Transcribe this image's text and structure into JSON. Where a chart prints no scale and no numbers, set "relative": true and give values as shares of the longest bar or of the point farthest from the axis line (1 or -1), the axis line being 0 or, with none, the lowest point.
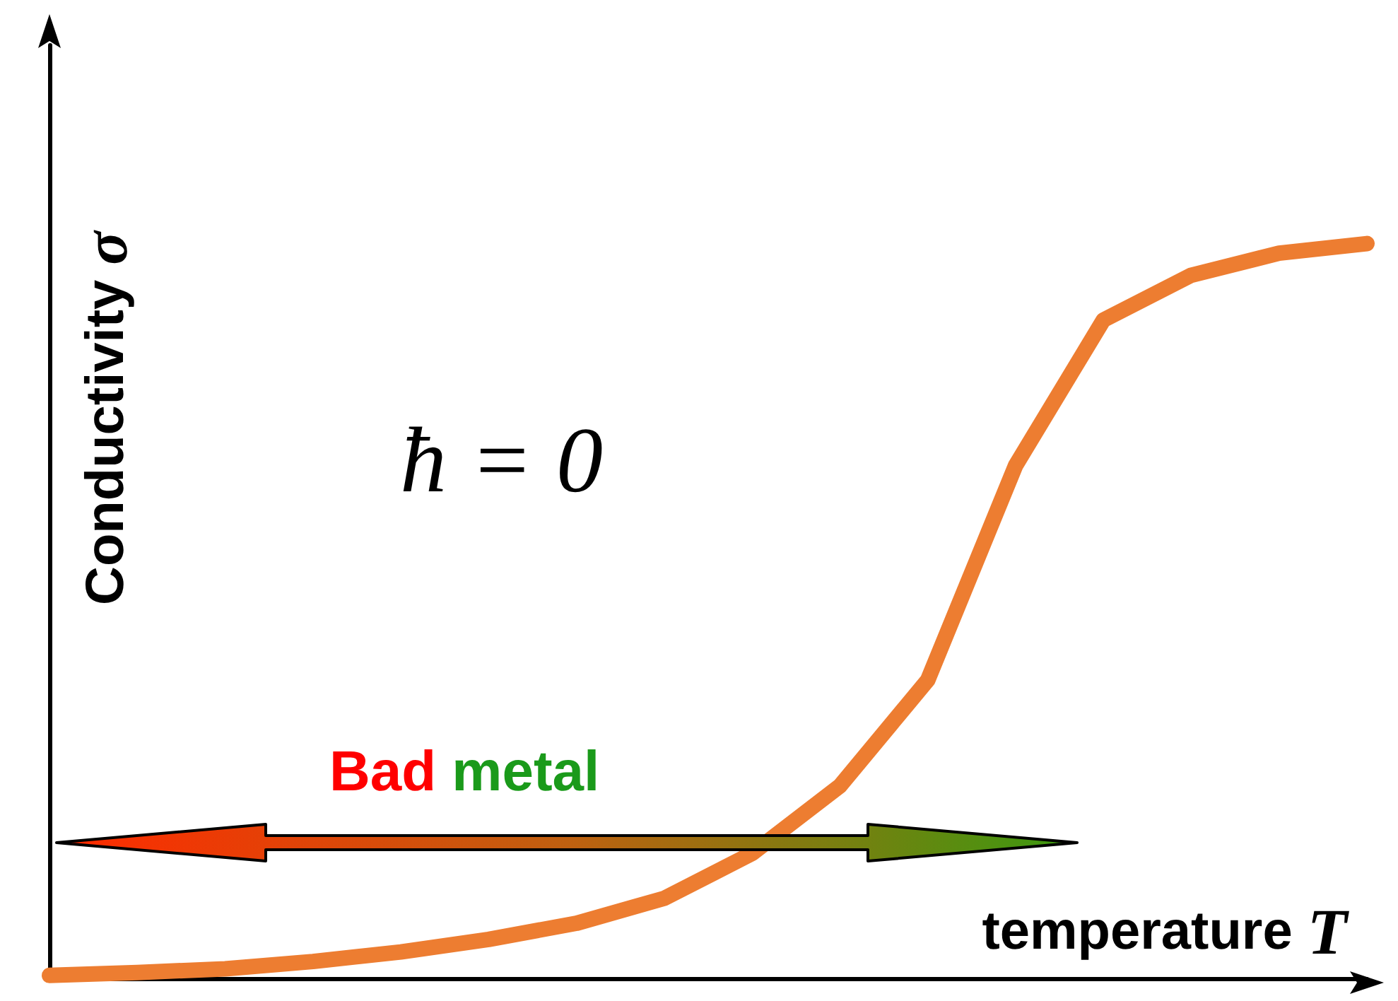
{
  "chart_data": {
    "type": "line",
    "relative": true,
    "xlabel": "temperature T",
    "ylabel": "Conductivity σ",
    "categories": [
      null,
      null,
      null,
      null,
      null,
      null,
      null,
      null,
      null,
      null,
      null,
      null,
      null,
      null,
      null,
      null
    ],
    "series": [
      {
        "color": "#ed7d31",
        "values": [
          0.004,
          0.008,
          0.013,
          0.023,
          0.036,
          0.053,
          0.075,
          0.109,
          0.17,
          0.262,
          0.406,
          0.698,
          0.896,
          0.957,
          0.987,
          1.0
        ]
      }
    ],
    "annotations": [
      "ħ = 0",
      "Bad metal"
    ],
    "line_style": "solid"
  }
}
